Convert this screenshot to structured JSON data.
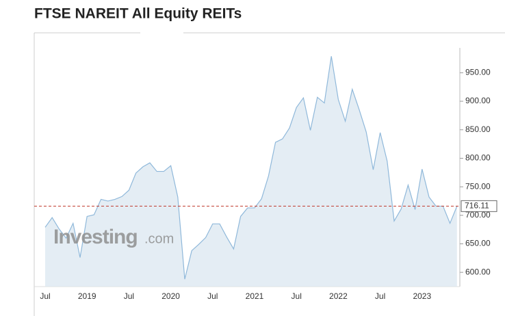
{
  "chart_data": {
    "type": "area",
    "title": "FTSE NAREIT All Equity REITs",
    "watermark": {
      "brand": "Investing",
      "suffix": ".com"
    },
    "categories": [
      "Jul",
      null,
      null,
      null,
      null,
      null,
      "2019",
      null,
      null,
      null,
      null,
      null,
      "Jul",
      null,
      null,
      null,
      null,
      null,
      "2020",
      null,
      null,
      null,
      null,
      null,
      "Jul",
      null,
      null,
      null,
      null,
      null,
      "2021",
      null,
      null,
      null,
      null,
      null,
      "Jul",
      null,
      null,
      null,
      null,
      null,
      "2022",
      null,
      null,
      null,
      null,
      null,
      "Jul",
      null,
      null,
      null,
      null,
      null,
      "2023",
      null,
      null,
      null,
      null,
      null
    ],
    "values": [
      679,
      696,
      676,
      660,
      686,
      626,
      698,
      701,
      728,
      725,
      728,
      733,
      744,
      774,
      785,
      792,
      777,
      777,
      787,
      732,
      588,
      638,
      649,
      661,
      685,
      685,
      662,
      641,
      698,
      713,
      713,
      729,
      769,
      828,
      834,
      853,
      889,
      906,
      849,
      907,
      897,
      979,
      903,
      865,
      921,
      885,
      846,
      780,
      845,
      795,
      690,
      711,
      753,
      710,
      781,
      732,
      716,
      716,
      686,
      716.11
    ],
    "color": "#8fb8da",
    "current_value": 716.11,
    "current_color": "#c0392b",
    "ylim": [
      575,
      990
    ],
    "yticks": [
      {
        "value": 600,
        "label": "600.00"
      },
      {
        "value": 650,
        "label": "650.00"
      },
      {
        "value": 700,
        "label": "700.00"
      },
      {
        "value": 750,
        "label": "750.00"
      },
      {
        "value": 800,
        "label": "800.00"
      },
      {
        "value": 850,
        "label": "850.00"
      },
      {
        "value": 900,
        "label": "900.00"
      },
      {
        "value": 950,
        "label": "950.00"
      }
    ]
  }
}
